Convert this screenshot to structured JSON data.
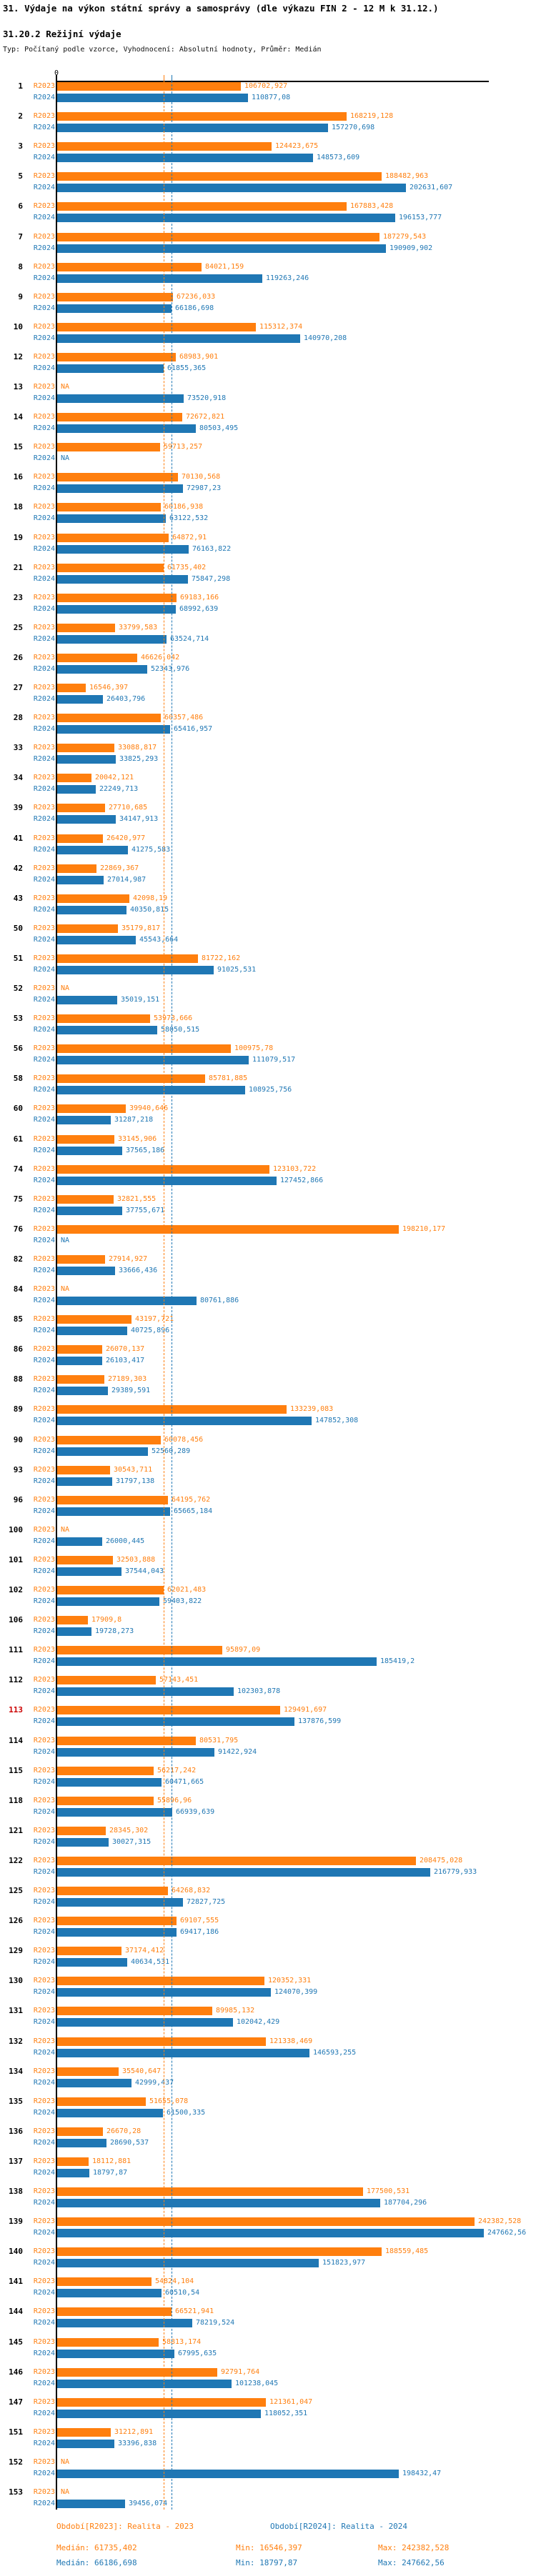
{
  "title": "31. Výdaje na výkon státní správy a samosprávy (dle výkazu FIN 2 - 12 M k 31.12.)",
  "subtitle": "31.20.2 Režijní výdaje",
  "meta": "Typ: Počítaný podle vzorce, Vyhodnocení: Absolutní hodnoty, Průměr: Medián",
  "axis": {
    "zero_label": "0"
  },
  "colors": {
    "r2023": "#ff7f0e",
    "r2024": "#1f77b4",
    "highlight_row": "#cc0000",
    "axis": "#000000"
  },
  "chart_data": {
    "type": "bar",
    "orientation": "horizontal",
    "title": "31.20.2 Režijní výdaje",
    "xlim": [
      0,
      250000
    ],
    "grid": false,
    "legend_position": "bottom",
    "categories": [
      "1",
      "2",
      "3",
      "5",
      "6",
      "7",
      "8",
      "9",
      "10",
      "12",
      "13",
      "14",
      "15",
      "16",
      "18",
      "19",
      "21",
      "23",
      "25",
      "26",
      "27",
      "28",
      "33",
      "34",
      "39",
      "41",
      "42",
      "43",
      "50",
      "51",
      "52",
      "53",
      "56",
      "58",
      "60",
      "61",
      "74",
      "75",
      "76",
      "82",
      "84",
      "85",
      "86",
      "88",
      "89",
      "90",
      "93",
      "96",
      "100",
      "101",
      "102",
      "106",
      "111",
      "112",
      "113",
      "114",
      "115",
      "118",
      "121",
      "122",
      "125",
      "126",
      "129",
      "130",
      "131",
      "132",
      "134",
      "135",
      "136",
      "137",
      "138",
      "139",
      "140",
      "141",
      "144",
      "145",
      "146",
      "147",
      "151",
      "152",
      "153"
    ],
    "highlighted_categories": [
      "113"
    ],
    "series": [
      {
        "name": "R2023",
        "period": "Realita - 2023",
        "median": 61735.402,
        "values": [
          106702.927,
          168219.128,
          124423.675,
          188482.963,
          167883.428,
          187279.543,
          84021.159,
          67236.033,
          115312.374,
          68983.901,
          null,
          72672.821,
          59713.257,
          70130.568,
          60186.938,
          64872.91,
          61735.402,
          69183.166,
          33799.583,
          46626.042,
          16546.397,
          60357.486,
          33088.817,
          20042.121,
          27710.685,
          26420.977,
          22869.367,
          42098.19,
          35179.817,
          81722.162,
          null,
          53973.666,
          100975.78,
          85781.885,
          39940.646,
          33145.906,
          123103.722,
          32821.555,
          198210.177,
          27914.927,
          null,
          43197.721,
          26070.137,
          27189.303,
          133239.083,
          60078.456,
          30543.711,
          64195.762,
          null,
          32503.888,
          62021.483,
          17909.8,
          95897.09,
          57143.451,
          129491.697,
          80531.795,
          56217.242,
          55896.96,
          28345.302,
          208475.028,
          64268.832,
          69107.555,
          37174.412,
          120352.331,
          89985.132,
          121338.469,
          35540.647,
          51655.078,
          26670.28,
          18112.881,
          177500.531,
          242382.528,
          188559.485,
          54824.104,
          66521.941,
          58813.174,
          92791.764,
          121361.047,
          31212.891,
          null,
          null
        ],
        "labels": [
          "106702,927",
          "168219,128",
          "124423,675",
          "188482,963",
          "167883,428",
          "187279,543",
          "84021,159",
          "67236,033",
          "115312,374",
          "68983,901",
          "NA",
          "72672,821",
          "59713,257",
          "70130,568",
          "60186,938",
          "64872,91",
          "61735,402",
          "69183,166",
          "33799,583",
          "46626,042",
          "16546,397",
          "60357,486",
          "33088,817",
          "20042,121",
          "27710,685",
          "26420,977",
          "22869,367",
          "42098,19",
          "35179,817",
          "81722,162",
          "NA",
          "53973,666",
          "100975,78",
          "85781,885",
          "39940,646",
          "33145,906",
          "123103,722",
          "32821,555",
          "198210,177",
          "27914,927",
          "NA",
          "43197,721",
          "26070,137",
          "27189,303",
          "133239,083",
          "60078,456",
          "30543,711",
          "64195,762",
          "NA",
          "32503,888",
          "62021,483",
          "17909,8",
          "95897,09",
          "57143,451",
          "129491,697",
          "80531,795",
          "56217,242",
          "55896,96",
          "28345,302",
          "208475,028",
          "64268,832",
          "69107,555",
          "37174,412",
          "120352,331",
          "89985,132",
          "121338,469",
          "35540,647",
          "51655,078",
          "26670,28",
          "18112,881",
          "177500,531",
          "242382,528",
          "188559,485",
          "54824,104",
          "66521,941",
          "58813,174",
          "92791,764",
          "121361,047",
          "31212,891",
          "NA",
          "NA"
        ]
      },
      {
        "name": "R2024",
        "period": "Realita - 2024",
        "median": 66186.698,
        "values": [
          110877.08,
          157270.698,
          148573.609,
          202631.607,
          196153.777,
          190909.902,
          119263.246,
          66186.698,
          140970.208,
          61855.365,
          73520.918,
          80503.495,
          null,
          72987.23,
          63122.532,
          76163.822,
          75847.298,
          68992.639,
          63524.714,
          52343.976,
          26403.796,
          65416.957,
          33825.293,
          22249.713,
          34147.913,
          41275.583,
          27014.987,
          40350.815,
          45543.664,
          91025.531,
          35019.151,
          58050.515,
          111079.517,
          108925.756,
          31287.218,
          37565.186,
          127452.866,
          37755.671,
          null,
          33666.436,
          80761.886,
          40725.896,
          26103.417,
          29389.591,
          147852.308,
          52560.289,
          31797.138,
          65665.184,
          26000.445,
          37544.043,
          59403.822,
          19728.273,
          185419.2,
          102303.878,
          137876.599,
          91422.924,
          60471.665,
          66939.639,
          30027.315,
          216779.933,
          72827.725,
          69417.186,
          40634.531,
          124070.399,
          102042.429,
          146593.255,
          42999.437,
          61500.335,
          28690.537,
          18797.87,
          187704.296,
          247662.56,
          151823.977,
          60510.54,
          78219.524,
          67995.635,
          101238.045,
          118052.351,
          33396.838,
          198432.47,
          39456.074
        ],
        "labels": [
          "110877,08",
          "157270,698",
          "148573,609",
          "202631,607",
          "196153,777",
          "190909,902",
          "119263,246",
          "66186,698",
          "140970,208",
          "61855,365",
          "73520,918",
          "80503,495",
          "NA",
          "72987,23",
          "63122,532",
          "76163,822",
          "75847,298",
          "68992,639",
          "63524,714",
          "52343,976",
          "26403,796",
          "65416,957",
          "33825,293",
          "22249,713",
          "34147,913",
          "41275,583",
          "27014,987",
          "40350,815",
          "45543,664",
          "91025,531",
          "35019,151",
          "58050,515",
          "111079,517",
          "108925,756",
          "31287,218",
          "37565,186",
          "127452,866",
          "37755,671",
          "NA",
          "33666,436",
          "80761,886",
          "40725,896",
          "26103,417",
          "29389,591",
          "147852,308",
          "52560,289",
          "31797,138",
          "65665,184",
          "26000,445",
          "37544,043",
          "59403,822",
          "19728,273",
          "185419,2",
          "102303,878",
          "137876,599",
          "91422,924",
          "60471,665",
          "66939,639",
          "30027,315",
          "216779,933",
          "72827,725",
          "69417,186",
          "40634,531",
          "124070,399",
          "102042,429",
          "146593,255",
          "42999,437",
          "61500,335",
          "28690,537",
          "18797,87",
          "187704,296",
          "247662,56",
          "151823,977",
          "60510,54",
          "78219,524",
          "67995,635",
          "101238,045",
          "118052,351",
          "33396,838",
          "198432,47",
          "39456,074"
        ]
      }
    ]
  },
  "footer": {
    "period_2023": "Období[R2023]: Realita - 2023",
    "period_2024": "Období[R2024]: Realita - 2024",
    "stats_2023": {
      "median": "Medián: 61735,402",
      "min": "Min: 16546,397",
      "max": "Max: 242382,528"
    },
    "stats_2024": {
      "median": "Medián: 66186,698",
      "min": "Min: 18797,87",
      "max": "Max: 247662,56"
    }
  }
}
